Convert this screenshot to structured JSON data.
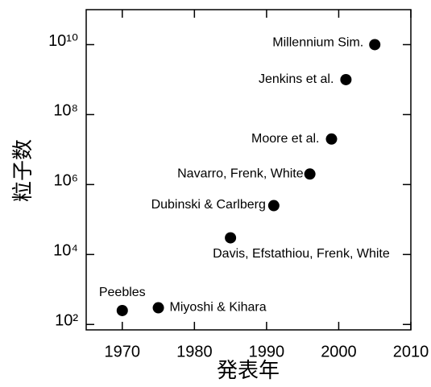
{
  "chart_data": {
    "type": "scatter",
    "xlabel": "発表年",
    "ylabel": "粒子数",
    "x": [
      1970,
      1975,
      1985,
      1991,
      1996,
      1999,
      2001,
      2005
    ],
    "values": [
      250,
      300,
      30000,
      250000,
      2000000,
      20000000,
      1000000000,
      10000000000
    ],
    "point_labels": [
      "Peebles",
      "Miyoshi & Kihara",
      "Davis, Efstathiou, Frenk, White",
      "Dubinski & Carlberg",
      "Navarro, Frenk, White",
      "Moore et al.",
      "Jenkins et al.",
      "Millennium Sim."
    ],
    "color": "#000000",
    "xlim": [
      1965,
      2010
    ],
    "xticks": [
      1970,
      1980,
      1990,
      2000,
      2010
    ],
    "ylim": [
      70,
      100000000000
    ],
    "ylog": true,
    "yticks": [
      {
        "value": 100,
        "label": "10²"
      },
      {
        "value": 10000,
        "label": "10⁴"
      },
      {
        "value": 1000000,
        "label": "10⁶"
      },
      {
        "value": 100000000,
        "label": "10⁸"
      },
      {
        "value": 10000000000,
        "label": "10¹⁰"
      }
    ]
  }
}
